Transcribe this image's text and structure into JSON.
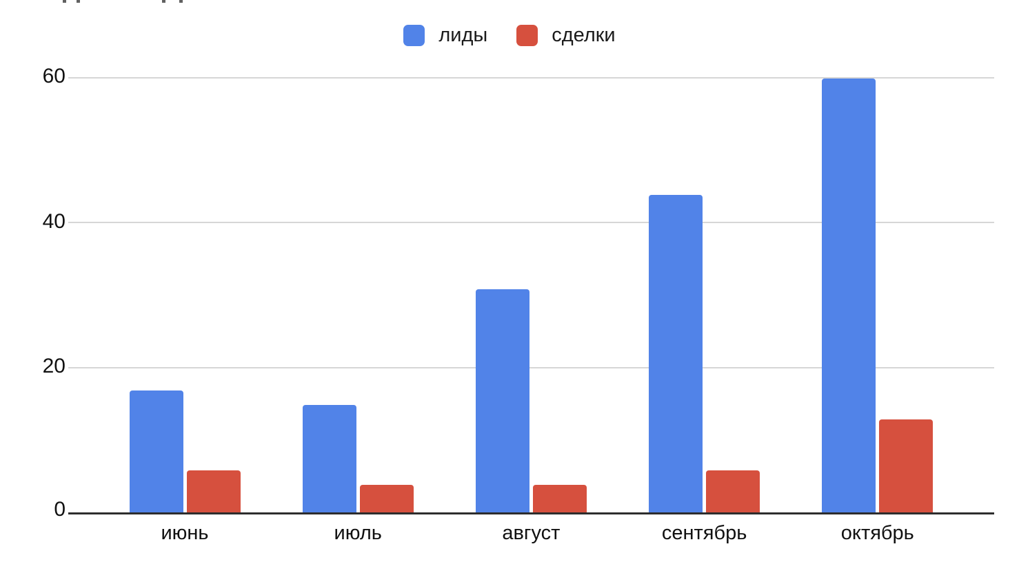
{
  "chart_data": {
    "type": "bar",
    "title": "",
    "xlabel": "",
    "ylabel": "",
    "categories": [
      "июнь",
      "июль",
      "август",
      "сентябрь",
      "октябрь"
    ],
    "series": [
      {
        "name": "лиды",
        "color": "#5183E8",
        "values": [
          17,
          15,
          31,
          44,
          60
        ]
      },
      {
        "name": "сделки",
        "color": "#D6503E",
        "values": [
          6,
          4,
          4,
          6,
          13
        ]
      }
    ],
    "yticks": [
      0,
      20,
      40,
      60
    ],
    "ylim": [
      0,
      60
    ],
    "grid": true,
    "legend_position": "top-center",
    "colors": {
      "background": "#ffffff",
      "axis_line": "#2d2d2d",
      "gridline": "#d6d6d6",
      "tick_text": "#111111",
      "legend_text": "#1b1b1b"
    }
  },
  "cropped_title": {
    "description": "bottom tips of a title cut off by the screenshot top edge",
    "fragment_x_positions": [
      91,
      111,
      235,
      260
    ],
    "color": "#616161"
  }
}
